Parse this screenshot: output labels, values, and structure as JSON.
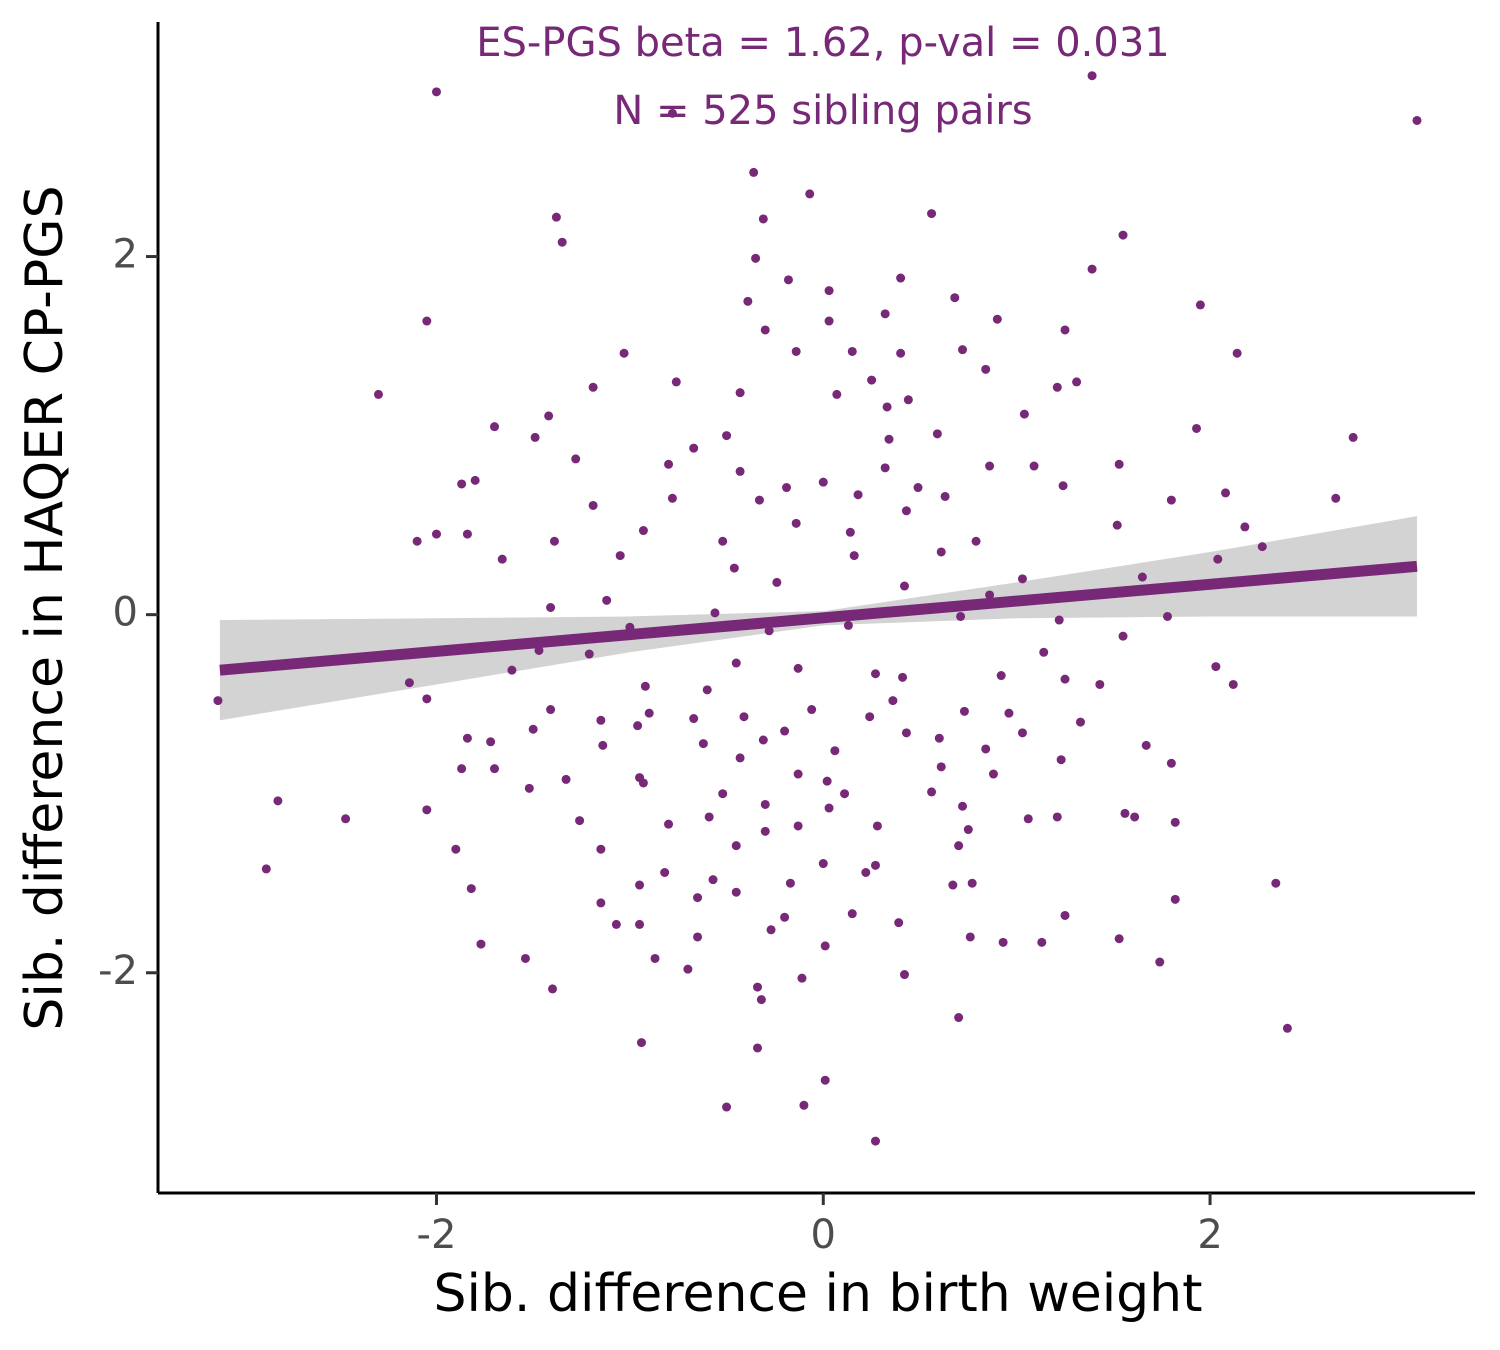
{
  "chart_data": {
    "type": "scatter",
    "xlabel": "Sib. difference in birth weight",
    "ylabel": "Sib. difference in HAQER CP-PGS",
    "annotations": [
      "ES-PGS beta = 1.62, p-val = 0.031",
      "N = 525 sibling pairs"
    ],
    "color": "#772877",
    "x": [
      -2.0,
      1.39,
      3.07,
      -0.78,
      -0.36,
      -0.07,
      -1.38,
      -1.35,
      -0.31,
      0.56,
      1.55,
      -0.35,
      -0.18,
      0.4,
      1.39,
      -2.05,
      -2.3,
      -0.39,
      0.03,
      0.68,
      1.95,
      0.9,
      0.03,
      0.32,
      1.25,
      -0.3,
      -1.03,
      2.14,
      -0.14,
      0.15,
      0.4,
      0.72,
      -1.19,
      -0.76,
      0.25,
      1.31,
      1.21,
      -0.43,
      0.07,
      0.84,
      -1.42,
      0.33,
      0.44,
      1.04,
      -1.7,
      -1.49,
      1.93,
      2.74,
      0.34,
      0.59,
      -0.67,
      -0.5,
      -1.28,
      -0.8,
      1.09,
      1.53,
      -1.8,
      -1.87,
      -0.43,
      -0.19,
      0.0,
      0.49,
      0.32,
      1.24,
      2.08,
      2.65,
      0.86,
      -1.19,
      -0.78,
      -0.33,
      0.18,
      0.63,
      1.8,
      -1.84,
      -2.1,
      -2.0,
      -1.39,
      -0.93,
      -0.52,
      -0.14,
      0.14,
      0.43,
      0.79,
      1.52,
      2.18,
      2.27,
      -1.66,
      -1.05,
      -0.46,
      -0.24,
      0.16,
      0.61,
      1.03,
      1.65,
      2.04,
      -1.12,
      -1.41,
      -0.56,
      0.42,
      0.86,
      1.78,
      1.22,
      -1.0,
      -0.28,
      0.13,
      0.71,
      1.55,
      -1.47,
      -1.21,
      -0.45,
      -0.13,
      2.03,
      1.14,
      -3.13,
      -2.14,
      -2.05,
      -1.61,
      2.12,
      1.43,
      -0.92,
      -0.6,
      0.27,
      0.41,
      0.92,
      1.25,
      -1.41,
      -0.9,
      -0.41,
      -0.06,
      0.36,
      0.73,
      -1.15,
      0.96,
      1.33,
      -1.5,
      -0.96,
      -0.67,
      -0.2,
      0.24,
      -1.84,
      -1.72,
      -1.14,
      -0.62,
      -0.31,
      0.6,
      0.43,
      1.03,
      1.67,
      0.84,
      1.23,
      -1.87,
      -1.7,
      -0.95,
      -0.43,
      0.06,
      0.61,
      1.8,
      0.88,
      -1.33,
      -0.13,
      -1.52,
      -0.93,
      -0.52,
      0.02,
      -2.82,
      0.56,
      0.11,
      -0.3,
      0.72,
      1.56,
      1.61,
      -2.47,
      -2.05,
      -1.26,
      -0.8,
      -0.59,
      0.03,
      1.06,
      1.21,
      1.82,
      0.75,
      0.28,
      -0.3,
      -0.13,
      -1.9,
      -1.15,
      0.7,
      -0.45,
      -2.88,
      0.0,
      0.27,
      0.22,
      -0.82,
      -0.57,
      -1.82,
      -0.95,
      -0.17,
      0.67,
      0.77,
      2.34,
      -0.65,
      -0.45,
      1.82,
      -1.15,
      0.15,
      1.25,
      0.39,
      -1.07,
      -0.95,
      -0.27,
      -0.2,
      0.76,
      0.93,
      1.13,
      1.53,
      -0.65,
      0.01,
      -1.77,
      -1.54,
      -0.87,
      1.74,
      -0.7,
      0.42,
      -0.11,
      -1.4,
      -0.34,
      -0.32,
      0.7,
      2.4,
      -0.94,
      -0.34,
      0.01,
      -0.5,
      -0.1,
      0.27
    ],
    "y": [
      2.92,
      3.01,
      2.76,
      2.8,
      2.47,
      2.35,
      2.22,
      2.08,
      2.21,
      2.24,
      2.12,
      1.99,
      1.87,
      1.88,
      1.93,
      1.64,
      1.23,
      1.75,
      1.81,
      1.77,
      1.73,
      1.65,
      1.64,
      1.68,
      1.59,
      1.59,
      1.46,
      1.46,
      1.47,
      1.47,
      1.46,
      1.48,
      1.27,
      1.3,
      1.31,
      1.3,
      1.27,
      1.24,
      1.23,
      1.37,
      1.11,
      1.16,
      1.2,
      1.12,
      1.05,
      0.99,
      1.04,
      0.99,
      0.98,
      1.01,
      0.93,
      1.0,
      0.87,
      0.84,
      0.83,
      0.84,
      0.75,
      0.73,
      0.8,
      0.71,
      0.74,
      0.71,
      0.82,
      0.72,
      0.68,
      0.65,
      0.83,
      0.61,
      0.65,
      0.64,
      0.67,
      0.66,
      0.64,
      0.45,
      0.41,
      0.45,
      0.41,
      0.47,
      0.41,
      0.51,
      0.46,
      0.58,
      0.41,
      0.5,
      0.49,
      0.38,
      0.31,
      0.33,
      0.26,
      0.18,
      0.33,
      0.35,
      0.2,
      0.21,
      0.31,
      0.08,
      0.04,
      0.01,
      0.16,
      0.11,
      -0.01,
      -0.03,
      -0.07,
      -0.09,
      -0.06,
      -0.01,
      -0.12,
      -0.2,
      -0.22,
      -0.27,
      -0.3,
      -0.29,
      -0.21,
      -0.48,
      -0.38,
      -0.47,
      -0.31,
      -0.39,
      -0.39,
      -0.4,
      -0.42,
      -0.33,
      -0.35,
      -0.34,
      -0.36,
      -0.53,
      -0.55,
      -0.57,
      -0.53,
      -0.48,
      -0.54,
      -0.59,
      -0.55,
      -0.6,
      -0.64,
      -0.62,
      -0.58,
      -0.65,
      -0.57,
      -0.69,
      -0.71,
      -0.73,
      -0.72,
      -0.7,
      -0.69,
      -0.66,
      -0.66,
      -0.73,
      -0.75,
      -0.81,
      -0.86,
      -0.86,
      -0.91,
      -0.8,
      -0.76,
      -0.85,
      -0.83,
      -0.89,
      -0.92,
      -0.89,
      -0.97,
      -0.94,
      -1.0,
      -0.93,
      -1.04,
      -0.99,
      -1.0,
      -1.06,
      -1.07,
      -1.11,
      -1.13,
      -1.14,
      -1.09,
      -1.15,
      -1.17,
      -1.13,
      -1.08,
      -1.14,
      -1.13,
      -1.16,
      -1.2,
      -1.18,
      -1.21,
      -1.18,
      -1.31,
      -1.31,
      -1.29,
      -1.29,
      -1.42,
      -1.39,
      -1.4,
      -1.44,
      -1.44,
      -1.48,
      -1.53,
      -1.51,
      -1.5,
      -1.51,
      -1.5,
      -1.5,
      -1.58,
      -1.55,
      -1.59,
      -1.61,
      -1.67,
      -1.68,
      -1.72,
      -1.73,
      -1.73,
      -1.76,
      -1.69,
      -1.8,
      -1.83,
      -1.83,
      -1.81,
      -1.8,
      -1.85,
      -1.84,
      -1.92,
      -1.92,
      -1.94,
      -1.98,
      -2.01,
      -2.03,
      -2.09,
      -2.08,
      -2.15,
      -2.25,
      -2.31,
      -2.39,
      -2.42,
      -2.6,
      -2.75,
      -2.74,
      -2.94
    ],
    "fit": {
      "color": "#772877",
      "x": [
        -3.12,
        3.07
      ],
      "y": [
        -0.31,
        0.27
      ]
    },
    "band": {
      "color": "#d3d3d3",
      "x": [
        -3.12,
        -2,
        -1,
        0,
        1,
        2,
        3.07
      ],
      "lower": [
        -0.59,
        -0.39,
        -0.21,
        -0.06,
        -0.02,
        -0.01,
        -0.01
      ],
      "upper": [
        -0.03,
        -0.02,
        -0.01,
        0.02,
        0.18,
        0.35,
        0.55
      ]
    },
    "xlim": [
      -3.44,
      3.37
    ],
    "ylim": [
      -3.23,
      3.31
    ],
    "xticks": [
      -2,
      0,
      2
    ],
    "yticks": [
      -2,
      0,
      2
    ],
    "grid": false
  }
}
